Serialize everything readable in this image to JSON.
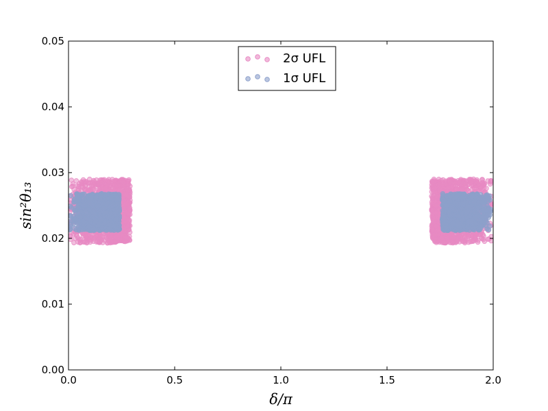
{
  "chart_data": {
    "type": "scatter",
    "xlabel": "δ/π",
    "ylabel": "sin²θ₁₃",
    "xlim": [
      0.0,
      2.0
    ],
    "ylim": [
      0.0,
      0.05
    ],
    "x_ticks": [
      "0.0",
      "0.5",
      "1.0",
      "1.5",
      "2.0"
    ],
    "y_ticks": [
      "0.00",
      "0.01",
      "0.02",
      "0.03",
      "0.04",
      "0.05"
    ],
    "grid": false,
    "legend_position": "upper-center",
    "series": [
      {
        "name": "2σ UFL",
        "color": "#e78ac3",
        "regions": [
          {
            "x_range": [
              0.0,
              0.29
            ],
            "y_range": [
              0.0193,
              0.029
            ]
          },
          {
            "x_range": [
              1.71,
              2.0
            ],
            "y_range": [
              0.0193,
              0.029
            ]
          }
        ]
      },
      {
        "name": "1σ UFL",
        "color": "#8da0cb",
        "regions": [
          {
            "x_range": [
              0.0,
              0.24
            ],
            "y_range": [
              0.0212,
              0.0268
            ]
          },
          {
            "x_range": [
              1.76,
              2.0
            ],
            "y_range": [
              0.0212,
              0.0268
            ]
          }
        ]
      }
    ]
  }
}
